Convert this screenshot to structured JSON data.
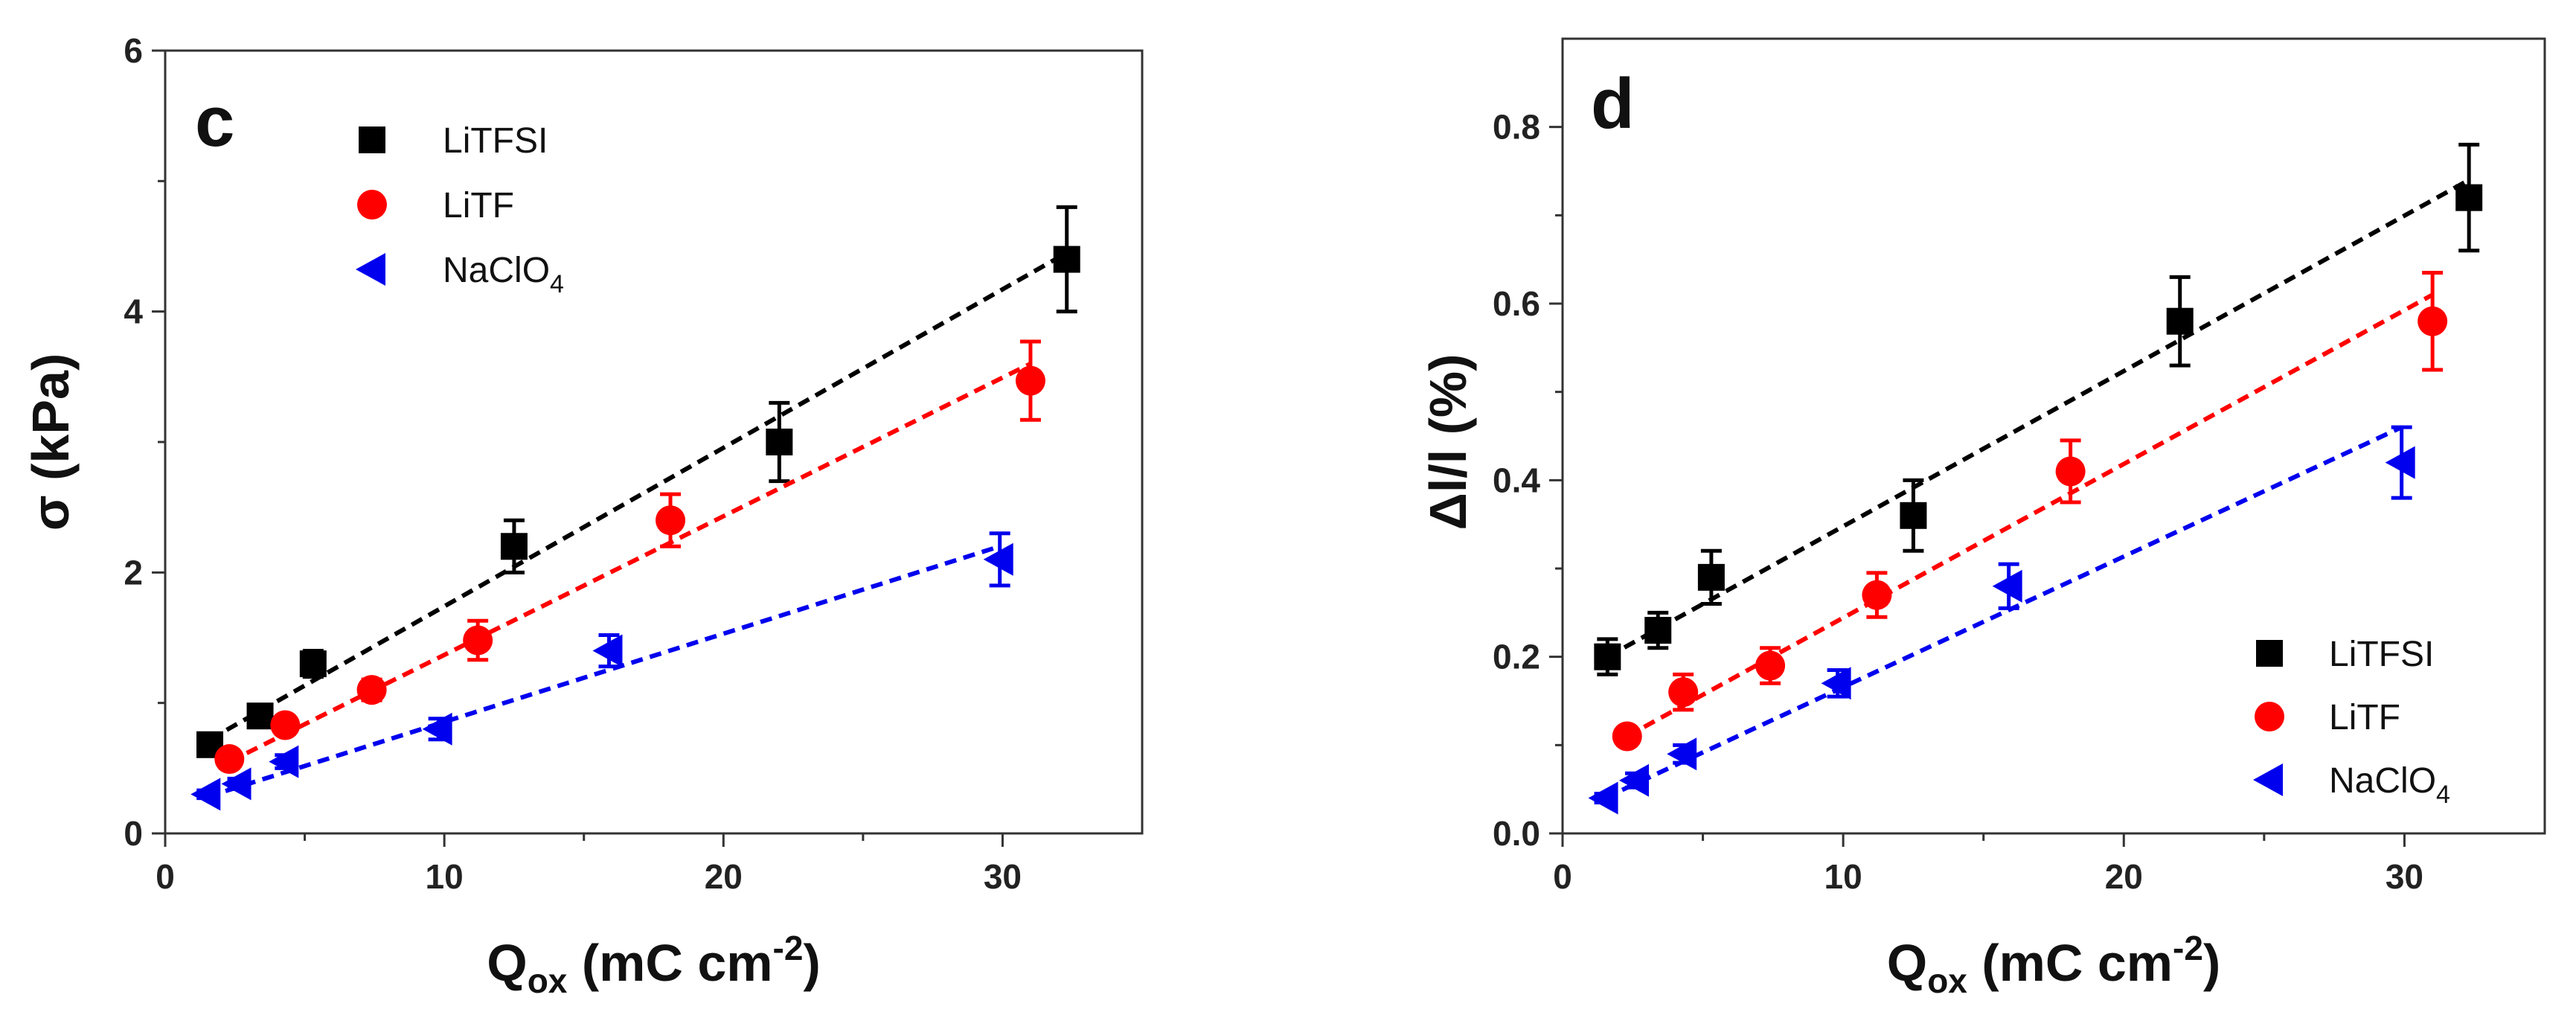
{
  "chart_data": [
    {
      "type": "scatter",
      "panel_label": "c",
      "xlabel": {
        "main": "Q",
        "sub": "ox",
        "unit": " (mC cm",
        "sup": "-2",
        "close": ")"
      },
      "ylabel": "σ (kPa)",
      "xlim": [
        0,
        35
      ],
      "ylim": [
        0,
        6
      ],
      "xticks": [
        0,
        10,
        20,
        30
      ],
      "xtick_labels": [
        "0",
        "10",
        "20",
        "30"
      ],
      "yticks": [
        0,
        2,
        4,
        6
      ],
      "ytick_labels": [
        "0",
        "2",
        "4",
        "6"
      ],
      "legend_position": "top-center",
      "series": [
        {
          "name": "LiTFSI",
          "sub": "",
          "color": "#000000",
          "marker": "square",
          "x": [
            1.6,
            3.4,
            5.3,
            12.5,
            22.0,
            32.3
          ],
          "y": [
            0.68,
            0.9,
            1.3,
            2.2,
            3.0,
            4.4
          ],
          "err": [
            0.05,
            0.05,
            0.1,
            0.2,
            0.3,
            0.4
          ],
          "fit": [
            [
              1.6,
              0.72
            ],
            [
              32.3,
              4.45
            ]
          ]
        },
        {
          "name": "LiTF",
          "sub": "",
          "color": "#ff0000",
          "marker": "circle",
          "x": [
            2.3,
            4.3,
            7.4,
            11.2,
            18.1,
            31.0
          ],
          "y": [
            0.57,
            0.83,
            1.1,
            1.48,
            2.4,
            3.47
          ],
          "err": [
            0.05,
            0.05,
            0.08,
            0.15,
            0.2,
            0.3
          ],
          "fit": [
            [
              2.3,
              0.55
            ],
            [
              31.0,
              3.6
            ]
          ]
        },
        {
          "name": "NaClO",
          "sub": "4",
          "color": "#0000ee",
          "marker": "triangle-left",
          "x": [
            1.5,
            2.6,
            4.3,
            9.8,
            15.9,
            29.9
          ],
          "y": [
            0.3,
            0.38,
            0.55,
            0.8,
            1.4,
            2.1
          ],
          "err": [
            0.03,
            0.04,
            0.05,
            0.08,
            0.12,
            0.2
          ],
          "fit": [
            [
              1.5,
              0.28
            ],
            [
              29.9,
              2.2
            ]
          ]
        }
      ]
    },
    {
      "type": "scatter",
      "panel_label": "d",
      "xlabel": {
        "main": "Q",
        "sub": "ox",
        "unit": " (mC cm",
        "sup": "-2",
        "close": ")"
      },
      "ylabel": "Δl/l (%)",
      "xlim": [
        0,
        35
      ],
      "ylim": [
        0,
        0.9
      ],
      "xticks": [
        0,
        10,
        20,
        30
      ],
      "xtick_labels": [
        "0",
        "10",
        "20",
        "30"
      ],
      "yticks": [
        0,
        0.2,
        0.4,
        0.6,
        0.8
      ],
      "ytick_labels": [
        "0.0",
        "0.2",
        "0.4",
        "0.6",
        "0.8"
      ],
      "legend_position": "bottom-right",
      "series": [
        {
          "name": "LiTFSI",
          "sub": "",
          "color": "#000000",
          "marker": "square",
          "x": [
            1.6,
            3.4,
            5.3,
            12.5,
            22.0,
            32.3
          ],
          "y": [
            0.2,
            0.23,
            0.29,
            0.36,
            0.58,
            0.72
          ],
          "err": [
            0.02,
            0.02,
            0.03,
            0.04,
            0.05,
            0.06
          ],
          "fit": [
            [
              1.6,
              0.2
            ],
            [
              32.3,
              0.74
            ]
          ]
        },
        {
          "name": "LiTF",
          "sub": "",
          "color": "#ff0000",
          "marker": "circle",
          "x": [
            2.3,
            4.3,
            7.4,
            11.2,
            18.1,
            31.0
          ],
          "y": [
            0.11,
            0.16,
            0.19,
            0.27,
            0.41,
            0.58
          ],
          "err": [
            0.01,
            0.02,
            0.02,
            0.025,
            0.035,
            0.055
          ],
          "fit": [
            [
              2.3,
              0.11
            ],
            [
              31.0,
              0.61
            ]
          ]
        },
        {
          "name": "NaClO",
          "sub": "4",
          "color": "#0000ee",
          "marker": "triangle-left",
          "x": [
            1.5,
            2.6,
            4.3,
            9.8,
            15.9,
            29.9
          ],
          "y": [
            0.04,
            0.06,
            0.09,
            0.17,
            0.28,
            0.42
          ],
          "err": [
            0.005,
            0.008,
            0.01,
            0.015,
            0.025,
            0.04
          ],
          "fit": [
            [
              1.5,
              0.04
            ],
            [
              29.9,
              0.46
            ]
          ]
        }
      ]
    }
  ]
}
